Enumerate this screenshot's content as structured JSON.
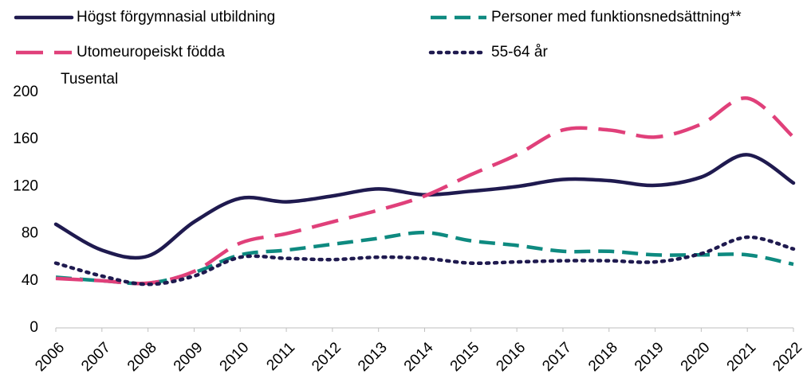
{
  "chart_data": {
    "type": "line",
    "y_label": "Tusental",
    "x": [
      "2006",
      "2007",
      "2008",
      "2009",
      "2010",
      "2011",
      "2012",
      "2013",
      "2014",
      "2015",
      "2016",
      "2017",
      "2018",
      "2019",
      "2020",
      "2021",
      "2022"
    ],
    "series": [
      {
        "name": "Högst förgymnasial utbildning",
        "color": "#1f1a4f",
        "style": "solid",
        "values": [
          88,
          66,
          61,
          90,
          110,
          107,
          112,
          118,
          113,
          116,
          120,
          126,
          125,
          121,
          128,
          147,
          123
        ]
      },
      {
        "name": "Personer med funktionsnedsättning**",
        "color": "#0e8a80",
        "style": "dash",
        "values": [
          43,
          40,
          38,
          47,
          62,
          66,
          71,
          76,
          81,
          74,
          70,
          65,
          65,
          62,
          62,
          62,
          54
        ]
      },
      {
        "name": "Utomeuropeiskt födda",
        "color": "#e0407a",
        "style": "long-dash",
        "values": [
          42,
          40,
          38,
          48,
          72,
          80,
          90,
          100,
          112,
          130,
          147,
          168,
          168,
          162,
          173,
          195,
          162
        ]
      },
      {
        "name": "55-64 år",
        "color": "#1f1a4f",
        "style": "dot",
        "values": [
          55,
          44,
          37,
          44,
          60,
          59,
          58,
          60,
          59,
          55,
          56,
          57,
          57,
          56,
          63,
          77,
          67
        ]
      }
    ],
    "ylim": [
      0,
      200
    ],
    "yticks": [
      0,
      40,
      80,
      120,
      160,
      200
    ],
    "grid": false
  }
}
